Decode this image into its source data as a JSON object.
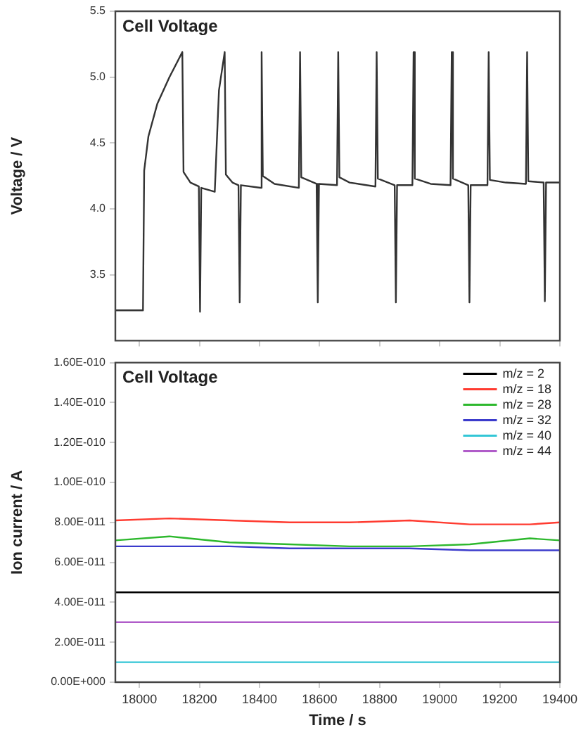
{
  "chart_data": [
    {
      "type": "line",
      "ylabel": "Voltage / V",
      "annotations": [
        "Cell Voltage"
      ],
      "xlim": [
        17920,
        19400
      ],
      "xticks": [
        18000,
        18200,
        18400,
        18600,
        18800,
        19000,
        19200,
        19400
      ],
      "ylim": [
        3.0,
        5.5
      ],
      "yticks": [
        {
          "value": 3.5,
          "label": "3.5"
        },
        {
          "value": 4,
          "label": "4.0"
        },
        {
          "value": 4.5,
          "label": "4.5"
        },
        {
          "value": 5,
          "label": "5.0"
        },
        {
          "value": 5.5,
          "label": "5.5"
        }
      ],
      "tick_labels": "y",
      "grid": false,
      "legend": false,
      "marker": "none",
      "series": [
        {
          "color": "#333333",
          "x": [
            17920,
            18012,
            18016,
            18030,
            18060,
            18100,
            18143,
            18147,
            18170,
            18198,
            18202,
            18206,
            18251,
            18265,
            18284,
            18288,
            18310,
            18330,
            18334,
            18338,
            18403,
            18407,
            18411,
            18450,
            18531,
            18535,
            18539,
            18590,
            18594,
            18598,
            18658,
            18662,
            18666,
            18700,
            18786,
            18790,
            18794,
            18850,
            18854,
            18858,
            18909,
            18913,
            18917,
            18970,
            19036,
            19040,
            19044,
            19095,
            19099,
            19103,
            19159,
            19163,
            19167,
            19220,
            19287,
            19291,
            19295,
            19346,
            19350,
            19354,
            19400
          ],
          "values": [
            3.23,
            3.23,
            4.29,
            4.55,
            4.8,
            5.0,
            5.19,
            4.28,
            4.2,
            4.17,
            3.22,
            4.16,
            4.13,
            4.9,
            5.19,
            4.26,
            4.2,
            4.18,
            3.29,
            4.18,
            4.16,
            5.19,
            4.25,
            4.19,
            4.16,
            5.19,
            4.24,
            4.19,
            3.29,
            4.19,
            4.18,
            5.19,
            4.24,
            4.2,
            4.17,
            5.19,
            4.23,
            4.18,
            3.29,
            4.18,
            4.18,
            5.19,
            4.23,
            4.19,
            4.18,
            5.19,
            4.23,
            4.18,
            3.29,
            4.18,
            4.18,
            5.19,
            4.22,
            4.2,
            4.19,
            5.19,
            4.21,
            4.2,
            3.3,
            4.2,
            4.2
          ]
        }
      ]
    },
    {
      "type": "line",
      "xlabel": "Time / s",
      "ylabel": "Ion current / A",
      "annotations": [
        "Cell Voltage"
      ],
      "xlim": [
        17920,
        19400
      ],
      "xticks": [
        18000,
        18200,
        18400,
        18600,
        18800,
        19000,
        19200,
        19400
      ],
      "ylim": [
        0,
        1.6e-10
      ],
      "yticks": [
        {
          "value": 0,
          "label": "0.00E+000"
        },
        {
          "value": 2e-11,
          "label": "2.00E-011"
        },
        {
          "value": 4e-11,
          "label": "4.00E-011"
        },
        {
          "value": 6e-11,
          "label": "6.00E-011"
        },
        {
          "value": 8e-11,
          "label": "8.00E-011"
        },
        {
          "value": 1e-10,
          "label": "1.00E-010"
        },
        {
          "value": 1.2e-10,
          "label": "1.20E-010"
        },
        {
          "value": 1.4e-10,
          "label": "1.40E-010"
        },
        {
          "value": 1.6e-10,
          "label": "1.60E-010"
        }
      ],
      "grid": false,
      "legend": "top right",
      "marker": "none",
      "x": [
        17920,
        18100,
        18300,
        18500,
        18700,
        18900,
        19100,
        19300,
        19400
      ],
      "series": [
        {
          "name": "m/z = 2",
          "color": "#000000",
          "values": [
            4.5e-11,
            4.5e-11,
            4.5e-11,
            4.5e-11,
            4.5e-11,
            4.5e-11,
            4.5e-11,
            4.5e-11,
            4.5e-11
          ]
        },
        {
          "name": "m/z = 18",
          "color": "#ff3b30",
          "values": [
            8.1e-11,
            8.2e-11,
            8.1e-11,
            8e-11,
            8e-11,
            8.1e-11,
            7.9e-11,
            7.9e-11,
            8e-11
          ]
        },
        {
          "name": "m/z = 28",
          "color": "#2db82d",
          "values": [
            7.1e-11,
            7.3e-11,
            7e-11,
            6.9e-11,
            6.8e-11,
            6.8e-11,
            6.9e-11,
            7.2e-11,
            7.1e-11
          ]
        },
        {
          "name": "m/z = 32",
          "color": "#3b3bcc",
          "values": [
            6.8e-11,
            6.8e-11,
            6.8e-11,
            6.7e-11,
            6.7e-11,
            6.7e-11,
            6.6e-11,
            6.6e-11,
            6.6e-11
          ]
        },
        {
          "name": "m/z = 40",
          "color": "#33c6d6",
          "values": [
            1e-11,
            1e-11,
            1e-11,
            1e-11,
            1e-11,
            1e-11,
            1e-11,
            1e-11,
            1e-11
          ]
        },
        {
          "name": "m/z = 44",
          "color": "#b05cc9",
          "values": [
            3e-11,
            3e-11,
            3e-11,
            3e-11,
            3e-11,
            3e-11,
            3e-11,
            3e-11,
            3e-11
          ]
        }
      ]
    }
  ]
}
